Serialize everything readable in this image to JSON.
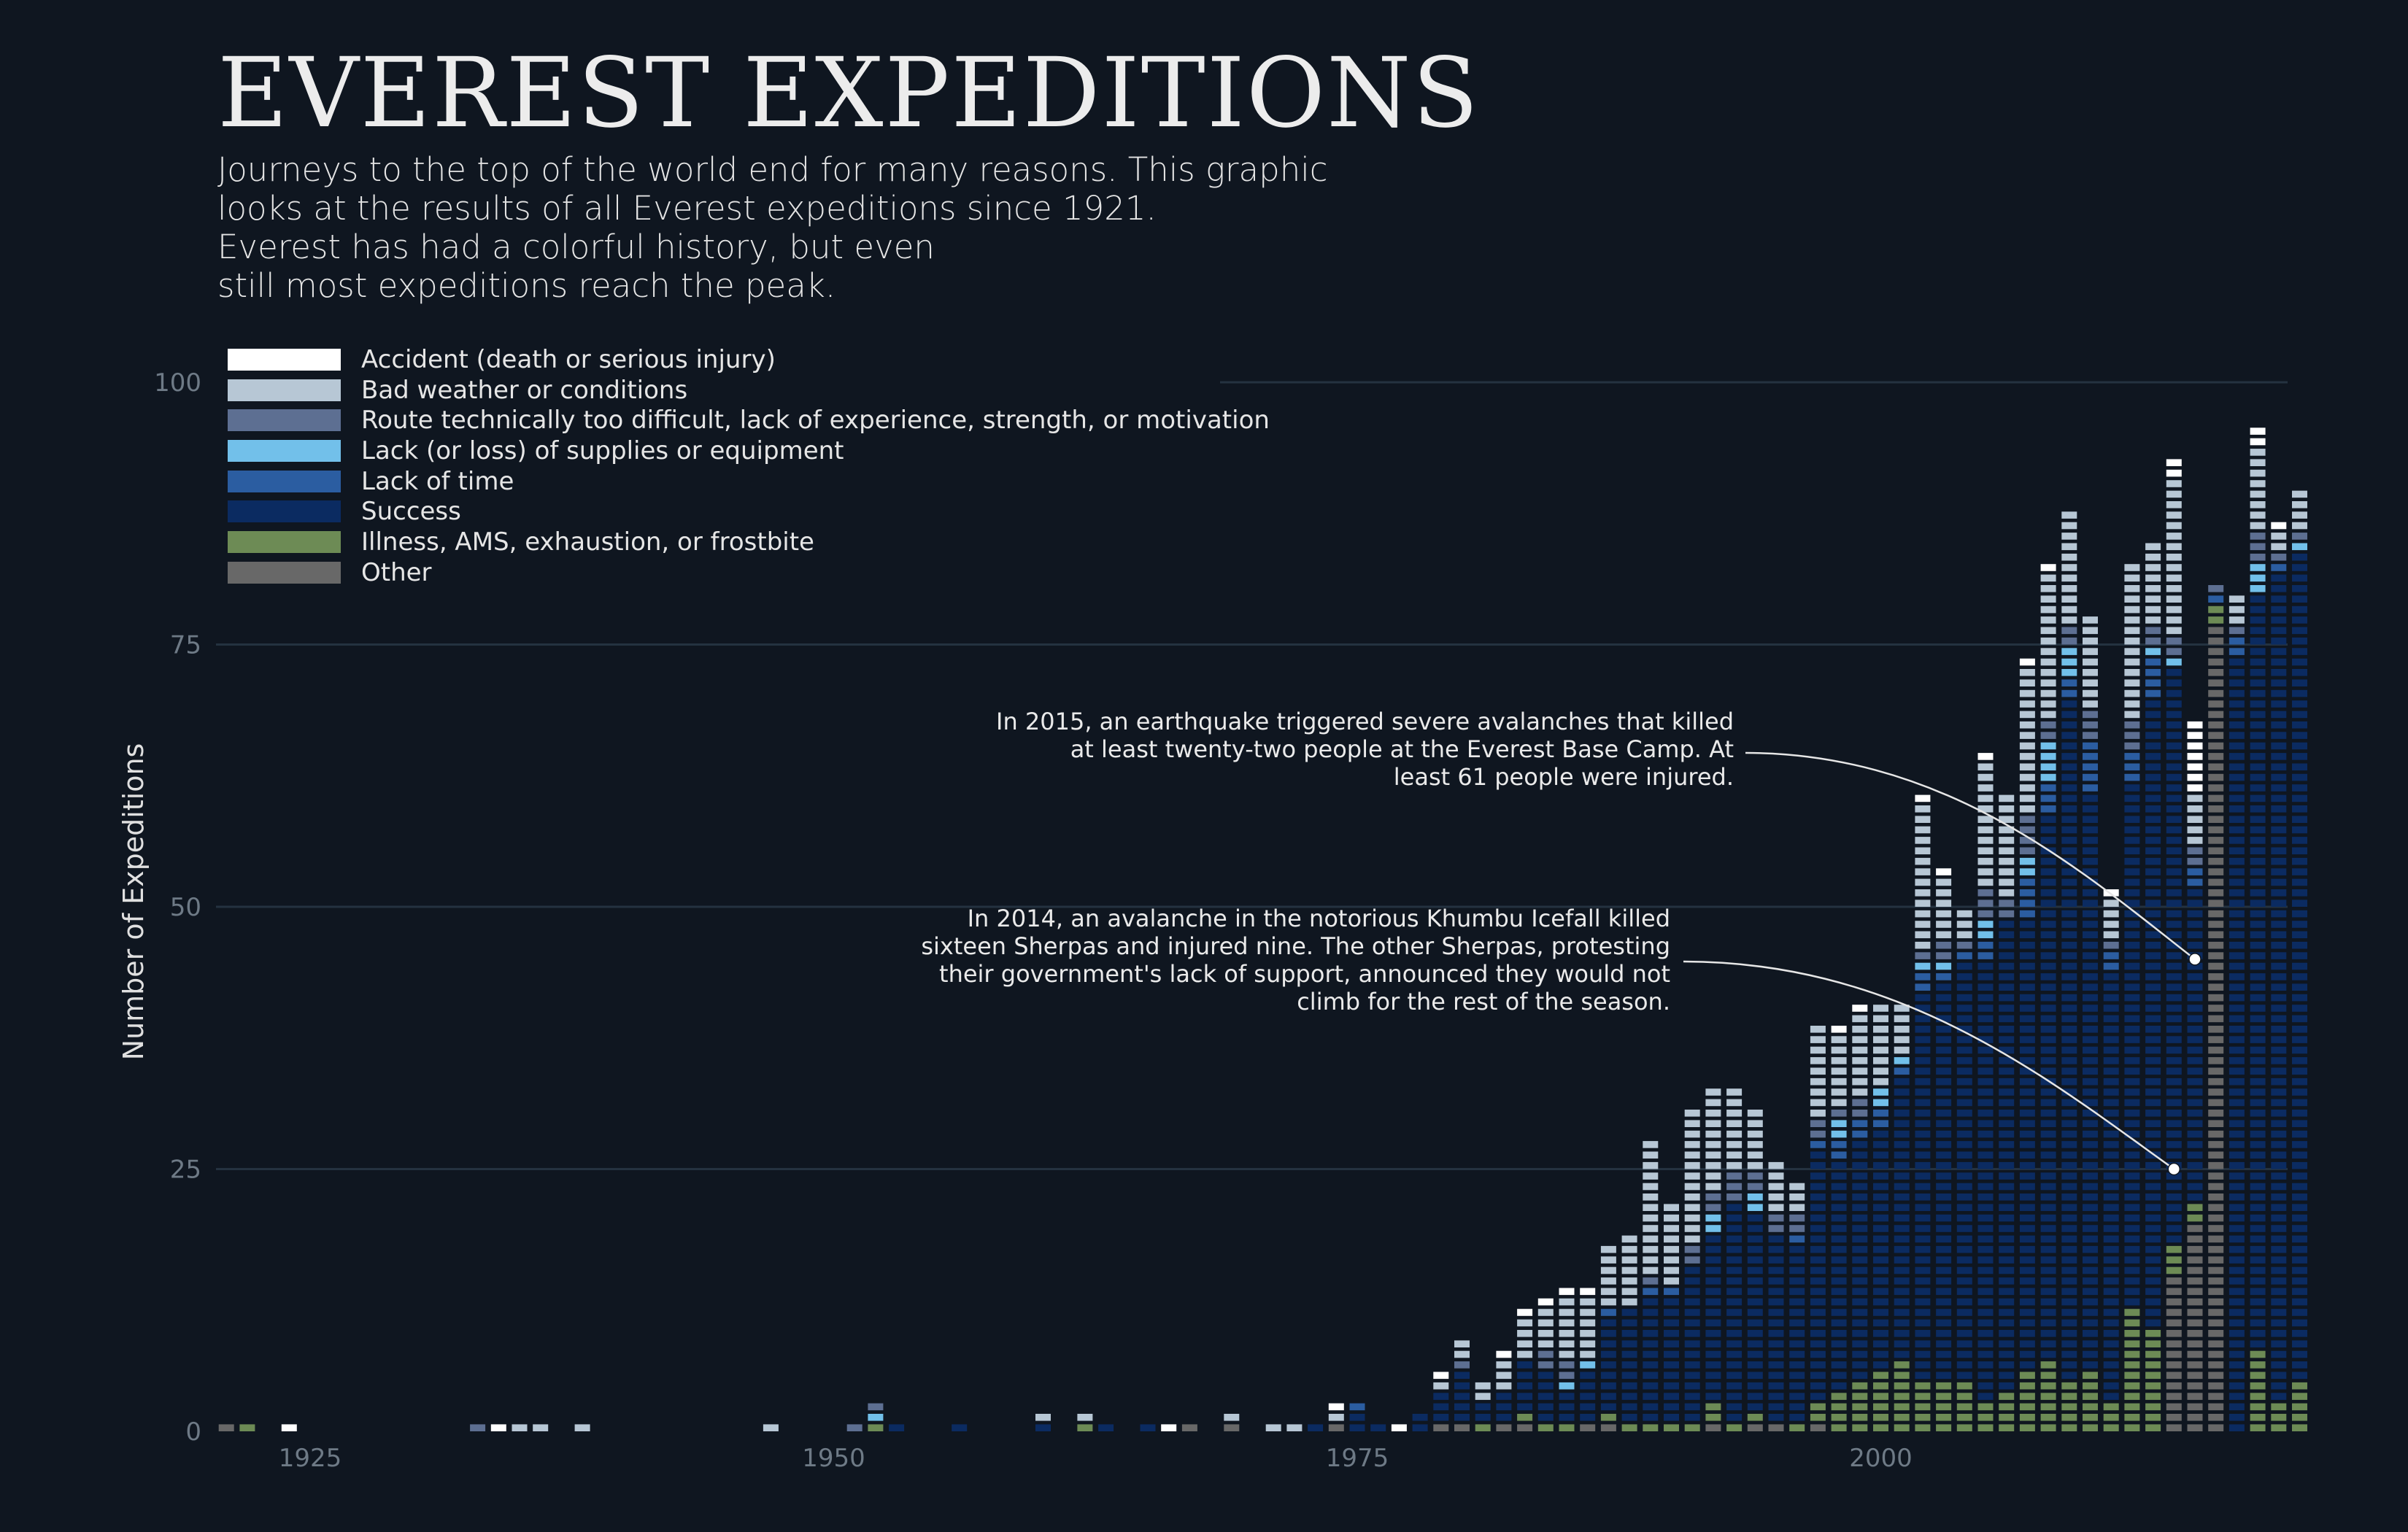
{
  "title": "EVEREST EXPEDITIONS",
  "subtitle_lines": [
    "Journeys to the top of the world end for many reasons. This graphic",
    "looks at the results of all Everest expeditions since 1921.",
    "Everest has had a colorful history, but even",
    "still most expeditions reach the peak."
  ],
  "legend": [
    {
      "key": "accident",
      "label": "Accident (death or serious injury)",
      "color": "#ffffff"
    },
    {
      "key": "weather",
      "label": "Bad weather or conditions",
      "color": "#b7c7d5"
    },
    {
      "key": "route",
      "label": "Route technically too difficult, lack of experience, strength, or motivation",
      "color": "#5d6f92"
    },
    {
      "key": "supplies",
      "label": "Lack (or loss) of supplies or equipment",
      "color": "#72c0ea"
    },
    {
      "key": "time",
      "label": "Lack of time",
      "color": "#2b5da1"
    },
    {
      "key": "success",
      "label": "Success",
      "color": "#0b2b61"
    },
    {
      "key": "illness",
      "label": "Illness, AMS, exhaustion, or frostbite",
      "color": "#6d8b55"
    },
    {
      "key": "other",
      "label": "Other",
      "color": "#686868"
    }
  ],
  "annotations": [
    {
      "id": "2015",
      "year": 2015,
      "value": 45,
      "lines": [
        "In 2015, an earthquake triggered severe avalanches that killed",
        "at least twenty-two people at the Everest Base Camp. At",
        "least 61 people were injured."
      ]
    },
    {
      "id": "2014",
      "year": 2014,
      "value": 25,
      "lines": [
        "In 2014, an avalanche in the notorious Khumbu Icefall killed",
        "sixteen Sherpas and injured nine. The other Sherpas, protesting",
        "their government's lack of support, announced they would not",
        "climb for the rest of the season."
      ]
    }
  ],
  "chart_data": {
    "type": "bar",
    "stacked": true,
    "mark": "one block per expedition",
    "ylabel": "Number of Expeditions",
    "xlabel": "",
    "xlim": [
      1921,
      2019
    ],
    "ylim": [
      0,
      100
    ],
    "x_ticks": [
      1925,
      1950,
      1975,
      2000
    ],
    "y_ticks": [
      0,
      25,
      50,
      75,
      100
    ],
    "grid": "horizontal",
    "legend_position": "top-left",
    "series_order": [
      "other",
      "illness",
      "success",
      "time",
      "supplies",
      "route",
      "weather",
      "accident"
    ],
    "years": [
      {
        "year": 1921,
        "other": 1
      },
      {
        "year": 1922,
        "illness": 1
      },
      {
        "year": 1924,
        "accident": 1
      },
      {
        "year": 1933,
        "route": 1
      },
      {
        "year": 1934,
        "accident": 1
      },
      {
        "year": 1935,
        "weather": 1
      },
      {
        "year": 1936,
        "weather": 1
      },
      {
        "year": 1938,
        "weather": 1
      },
      {
        "year": 1947,
        "weather": 1
      },
      {
        "year": 1951,
        "route": 1
      },
      {
        "year": 1952,
        "illness": 1,
        "supplies": 1,
        "route": 1
      },
      {
        "year": 1953,
        "success": 1
      },
      {
        "year": 1956,
        "success": 1
      },
      {
        "year": 1960,
        "success": 1,
        "weather": 1
      },
      {
        "year": 1962,
        "illness": 1,
        "weather": 1
      },
      {
        "year": 1963,
        "success": 1
      },
      {
        "year": 1965,
        "success": 1
      },
      {
        "year": 1966,
        "accident": 1
      },
      {
        "year": 1967,
        "other": 1
      },
      {
        "year": 1969,
        "other": 1,
        "weather": 1
      },
      {
        "year": 1971,
        "weather": 1
      },
      {
        "year": 1972,
        "weather": 1
      },
      {
        "year": 1973,
        "success": 1
      },
      {
        "year": 1974,
        "other": 1,
        "weather": 1,
        "accident": 1
      },
      {
        "year": 1975,
        "success": 2,
        "time": 1
      },
      {
        "year": 1976,
        "success": 1
      },
      {
        "year": 1977,
        "accident": 1
      },
      {
        "year": 1978,
        "success": 2
      },
      {
        "year": 1979,
        "other": 1,
        "success": 3,
        "weather": 1,
        "accident": 1
      },
      {
        "year": 1980,
        "other": 1,
        "success": 5,
        "route": 1,
        "weather": 2
      },
      {
        "year": 1981,
        "illness": 1,
        "success": 2,
        "weather": 2
      },
      {
        "year": 1982,
        "other": 1,
        "success": 3,
        "weather": 3,
        "accident": 1
      },
      {
        "year": 1983,
        "other": 1,
        "illness": 1,
        "success": 5,
        "weather": 4,
        "accident": 1
      },
      {
        "year": 1984,
        "illness": 1,
        "success": 5,
        "route": 2,
        "weather": 4,
        "accident": 1
      },
      {
        "year": 1985,
        "illness": 1,
        "success": 3,
        "supplies": 1,
        "route": 2,
        "weather": 6,
        "accident": 1
      },
      {
        "year": 1986,
        "other": 1,
        "success": 5,
        "supplies": 1,
        "weather": 6,
        "accident": 1
      },
      {
        "year": 1987,
        "other": 1,
        "illness": 1,
        "success": 9,
        "time": 1,
        "weather": 6
      },
      {
        "year": 1988,
        "illness": 1,
        "success": 11,
        "weather": 7
      },
      {
        "year": 1989,
        "illness": 1,
        "success": 12,
        "time": 1,
        "route": 1,
        "weather": 13
      },
      {
        "year": 1990,
        "illness": 1,
        "success": 12,
        "time": 1,
        "weather": 8
      },
      {
        "year": 1991,
        "illness": 1,
        "success": 15,
        "route": 2,
        "weather": 13
      },
      {
        "year": 1992,
        "other": 1,
        "illness": 2,
        "success": 16,
        "supplies": 2,
        "route": 2,
        "weather": 10
      },
      {
        "year": 1993,
        "illness": 1,
        "success": 21,
        "route": 3,
        "weather": 8
      },
      {
        "year": 1994,
        "other": 1,
        "illness": 1,
        "success": 19,
        "supplies": 2,
        "route": 2,
        "weather": 6
      },
      {
        "year": 1995,
        "other": 1,
        "success": 18,
        "route": 2,
        "weather": 5
      },
      {
        "year": 1996,
        "illness": 1,
        "success": 17,
        "time": 1,
        "route": 2,
        "weather": 3
      },
      {
        "year": 1997,
        "other": 1,
        "illness": 2,
        "success": 24,
        "time": 1,
        "route": 2,
        "weather": 9
      },
      {
        "year": 1998,
        "illness": 4,
        "success": 22,
        "time": 2,
        "supplies": 2,
        "route": 1,
        "weather": 7,
        "accident": 1
      },
      {
        "year": 1999,
        "illness": 5,
        "success": 23,
        "time": 2,
        "route": 2,
        "weather": 8,
        "accident": 1
      },
      {
        "year": 2000,
        "illness": 6,
        "success": 23,
        "time": 2,
        "supplies": 2,
        "weather": 8
      },
      {
        "year": 2001,
        "illness": 7,
        "success": 27,
        "time": 1,
        "supplies": 1,
        "weather": 5
      },
      {
        "year": 2002,
        "illness": 5,
        "success": 37,
        "time": 2,
        "supplies": 1,
        "route": 1,
        "weather": 14,
        "accident": 1
      },
      {
        "year": 2003,
        "illness": 5,
        "success": 38,
        "time": 1,
        "supplies": 1,
        "route": 2,
        "weather": 6,
        "accident": 1
      },
      {
        "year": 2004,
        "illness": 5,
        "success": 40,
        "time": 1,
        "route": 1,
        "weather": 3
      },
      {
        "year": 2005,
        "illness": 3,
        "success": 42,
        "time": 2,
        "supplies": 2,
        "route": 3,
        "weather": 12,
        "accident": 1
      },
      {
        "year": 2006,
        "illness": 4,
        "success": 45,
        "route": 2,
        "weather": 10
      },
      {
        "year": 2007,
        "illness": 6,
        "success": 43,
        "time": 4,
        "supplies": 2,
        "route": 4,
        "weather": 14,
        "accident": 1
      },
      {
        "year": 2008,
        "illness": 7,
        "success": 52,
        "time": 3,
        "supplies": 4,
        "route": 2,
        "weather": 14,
        "accident": 1
      },
      {
        "year": 2009,
        "illness": 5,
        "success": 65,
        "time": 2,
        "supplies": 3,
        "route": 2,
        "weather": 11
      },
      {
        "year": 2010,
        "illness": 6,
        "success": 55,
        "time": 5,
        "route": 3,
        "weather": 9
      },
      {
        "year": 2011,
        "illness": 3,
        "success": 41,
        "time": 2,
        "route": 1,
        "weather": 4,
        "accident": 1
      },
      {
        "year": 2012,
        "illness": 12,
        "success": 50,
        "time": 3,
        "route": 3,
        "weather": 15
      },
      {
        "year": 2013,
        "illness": 10,
        "success": 60,
        "time": 4,
        "supplies": 1,
        "route": 2,
        "weather": 8
      },
      {
        "year": 2014,
        "other": 15,
        "illness": 3,
        "success": 55,
        "supplies": 1,
        "route": 2,
        "weather": 15,
        "accident": 2
      },
      {
        "year": 2015,
        "other": 20,
        "illness": 2,
        "success": 30,
        "time": 2,
        "route": 2,
        "weather": 5,
        "accident": 7
      },
      {
        "year": 2016,
        "other": 77,
        "illness": 2,
        "time": 1,
        "route": 1
      },
      {
        "year": 2017,
        "success": 74,
        "time": 2,
        "route": 1,
        "weather": 3
      },
      {
        "year": 2018,
        "illness": 8,
        "success": 72,
        "supplies": 3,
        "route": 3,
        "weather": 8,
        "accident": 2
      },
      {
        "year": 2019,
        "illness": 3,
        "success": 79,
        "time": 1,
        "route": 1,
        "weather": 2,
        "accident": 1
      },
      {
        "year": 2020,
        "illness": 5,
        "success": 79,
        "supplies": 1,
        "route": 1,
        "weather": 4
      }
    ]
  }
}
